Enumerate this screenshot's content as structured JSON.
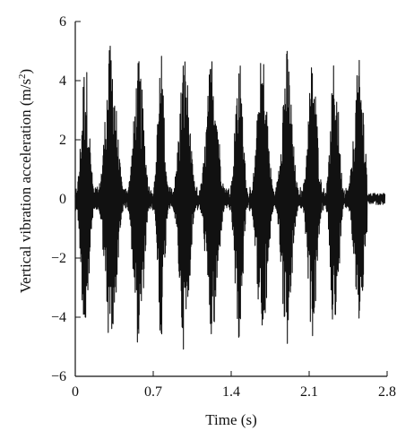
{
  "chart_data": {
    "type": "line",
    "xlabel": "Time (s)",
    "ylabel": {
      "prefix": "Vertical vibration acceleration (m/s",
      "superscript": "2",
      "suffix": ")"
    },
    "xlim": [
      0,
      2.8
    ],
    "ylim": [
      -6,
      6
    ],
    "x_ticks": [
      0,
      0.7,
      1.4,
      2.1,
      2.8
    ],
    "x_tick_labels": [
      "0",
      "0.7",
      "1.4",
      "2.1",
      "2.8"
    ],
    "y_ticks": [
      -6,
      -4,
      -2,
      0,
      2,
      4,
      6
    ],
    "y_tick_labels": [
      "−6",
      "−4",
      "−2",
      "0",
      "2",
      "4",
      "6"
    ],
    "grid": false,
    "line_color": "#111111",
    "duration_s": 2.8,
    "signal_end_s": 2.78,
    "bursts": [
      {
        "center": 0.09,
        "width": 0.07,
        "peak_pos": 4.8,
        "peak_neg": -5.0
      },
      {
        "center": 0.32,
        "width": 0.1,
        "peak_pos": 5.3,
        "peak_neg": -5.4
      },
      {
        "center": 0.57,
        "width": 0.09,
        "peak_pos": 4.7,
        "peak_neg": -5.1
      },
      {
        "center": 0.77,
        "width": 0.06,
        "peak_pos": 5.0,
        "peak_neg": -4.8
      },
      {
        "center": 0.98,
        "width": 0.09,
        "peak_pos": 5.0,
        "peak_neg": -5.2
      },
      {
        "center": 1.23,
        "width": 0.1,
        "peak_pos": 5.0,
        "peak_neg": -5.0
      },
      {
        "center": 1.47,
        "width": 0.07,
        "peak_pos": 4.9,
        "peak_neg": -4.9
      },
      {
        "center": 1.68,
        "width": 0.09,
        "peak_pos": 5.0,
        "peak_neg": -5.2
      },
      {
        "center": 1.9,
        "width": 0.09,
        "peak_pos": 5.1,
        "peak_neg": -5.1
      },
      {
        "center": 2.13,
        "width": 0.08,
        "peak_pos": 4.8,
        "peak_neg": -4.8
      },
      {
        "center": 2.33,
        "width": 0.07,
        "peak_pos": 4.9,
        "peak_neg": -5.0
      },
      {
        "center": 2.55,
        "width": 0.09,
        "peak_pos": 4.7,
        "peak_neg": -4.3
      }
    ],
    "baseline_noise_amplitude": 0.4,
    "tail_noise_amplitude": 0.15
  }
}
